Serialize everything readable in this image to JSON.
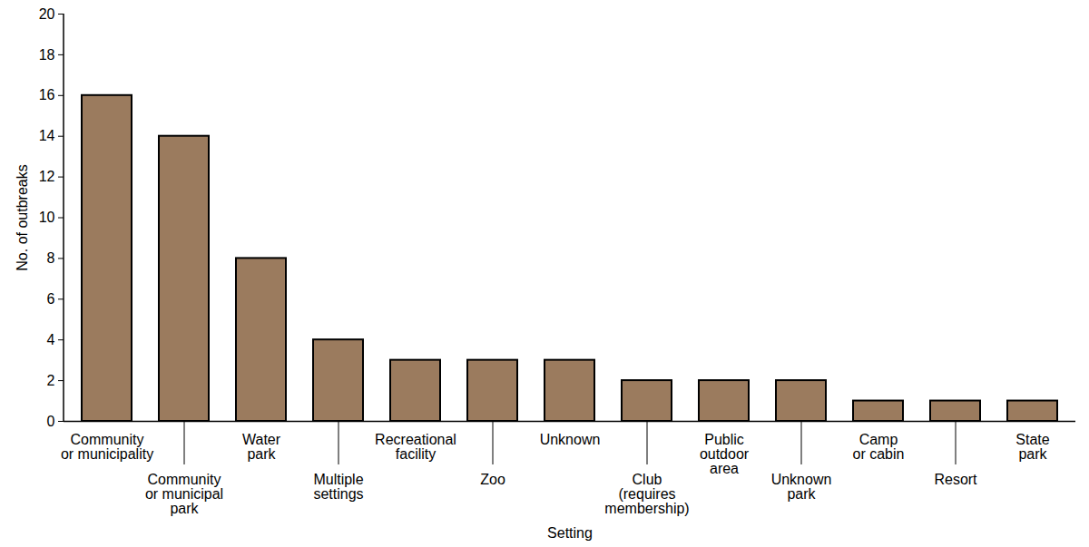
{
  "chart_data": {
    "type": "bar",
    "x_label": "Setting",
    "y_label": "No. of outbreaks",
    "categories": [
      "Community\nor municipality",
      "Community\nor municipal\npark",
      "Water\npark",
      "Multiple\nsettings",
      "Recreational\nfacility",
      "Zoo",
      "Unknown",
      "Club\n(requires\nmembership)",
      "Public\noutdoor\narea",
      "Unknown\npark",
      "Camp\nor cabin",
      "Resort",
      "State\npark"
    ],
    "values": [
      16,
      14,
      8,
      4,
      3,
      3,
      3,
      2,
      2,
      2,
      1,
      1,
      1
    ],
    "color": "#9b7b5e",
    "ylim": [
      0,
      20
    ],
    "yticks": [
      0,
      2,
      4,
      6,
      8,
      10,
      12,
      14,
      16,
      18,
      20
    ],
    "grid": false
  }
}
